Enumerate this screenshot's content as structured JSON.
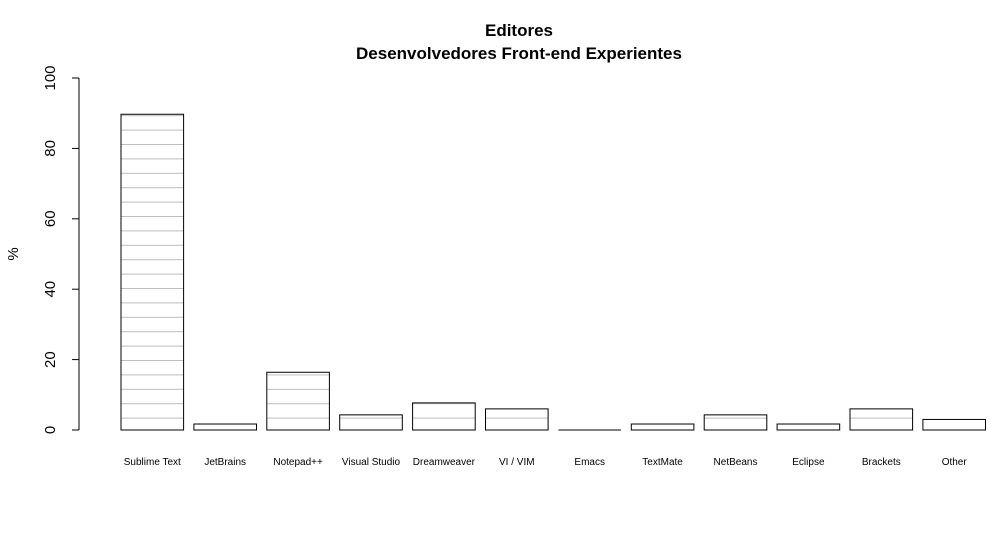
{
  "chart_data": {
    "type": "bar",
    "title": "Editores",
    "subtitle": "Desenvolvedores Front-end Experientes",
    "xlabel": "",
    "ylabel": "%",
    "ylim": [
      0,
      100
    ],
    "yticks": [
      0,
      20,
      40,
      60,
      80,
      100
    ],
    "grid": false,
    "bar_pattern": "horizontal-lines",
    "bar_fill": "#ffffff",
    "bar_stroke": "#000000",
    "pattern_color": "#bdbdbd",
    "categories": [
      "Sublime Text",
      "JetBrains",
      "Notepad++",
      "Visual Studio",
      "Dreamweaver",
      "VI / VIM",
      "Emacs",
      "TextMate",
      "NetBeans",
      "Eclipse",
      "Brackets",
      "Other"
    ],
    "values": [
      89.7,
      1.7,
      16.4,
      4.3,
      7.7,
      6.0,
      0,
      1.7,
      4.3,
      1.7,
      6.0,
      3.0
    ]
  }
}
